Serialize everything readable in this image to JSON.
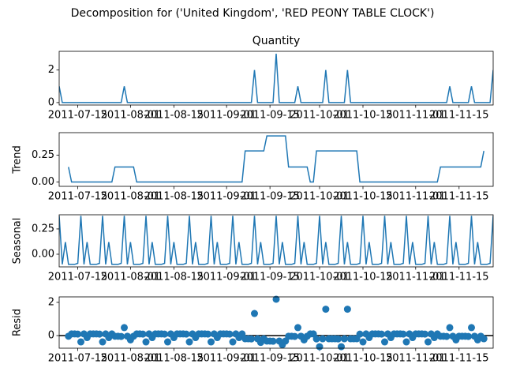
{
  "title": "Decomposition for ('United Kingdom', 'RED PEONY TABLE CLOCK')",
  "x": [
    "2011-07-09",
    "2011-07-10",
    "2011-07-11",
    "2011-07-12",
    "2011-07-13",
    "2011-07-14",
    "2011-07-15",
    "2011-07-16",
    "2011-07-17",
    "2011-07-18",
    "2011-07-19",
    "2011-07-20",
    "2011-07-21",
    "2011-07-22",
    "2011-07-23",
    "2011-07-24",
    "2011-07-25",
    "2011-07-26",
    "2011-07-27",
    "2011-07-28",
    "2011-07-29",
    "2011-07-30",
    "2011-07-31",
    "2011-08-01",
    "2011-08-02",
    "2011-08-03",
    "2011-08-04",
    "2011-08-05",
    "2011-08-06",
    "2011-08-07",
    "2011-08-08",
    "2011-08-09",
    "2011-08-10",
    "2011-08-11",
    "2011-08-12",
    "2011-08-13",
    "2011-08-14",
    "2011-08-15",
    "2011-08-16",
    "2011-08-17",
    "2011-08-18",
    "2011-08-19",
    "2011-08-20",
    "2011-08-21",
    "2011-08-22",
    "2011-08-23",
    "2011-08-24",
    "2011-08-25",
    "2011-08-26",
    "2011-08-27",
    "2011-08-28",
    "2011-08-29",
    "2011-08-30",
    "2011-08-31",
    "2011-09-01",
    "2011-09-02",
    "2011-09-03",
    "2011-09-04",
    "2011-09-05",
    "2011-09-06",
    "2011-09-07",
    "2011-09-08",
    "2011-09-09",
    "2011-09-10",
    "2011-09-11",
    "2011-09-12",
    "2011-09-13",
    "2011-09-14",
    "2011-09-15",
    "2011-09-16",
    "2011-09-17",
    "2011-09-18",
    "2011-09-19",
    "2011-09-20",
    "2011-09-21",
    "2011-09-22",
    "2011-09-23",
    "2011-09-24",
    "2011-09-25",
    "2011-09-26",
    "2011-09-27",
    "2011-09-28",
    "2011-09-29",
    "2011-09-30",
    "2011-10-01",
    "2011-10-02",
    "2011-10-03",
    "2011-10-04",
    "2011-10-05",
    "2011-10-06",
    "2011-10-07",
    "2011-10-08",
    "2011-10-09",
    "2011-10-10",
    "2011-10-11",
    "2011-10-12",
    "2011-10-13",
    "2011-10-14",
    "2011-10-15",
    "2011-10-16",
    "2011-10-17",
    "2011-10-18",
    "2011-10-19",
    "2011-10-20",
    "2011-10-21",
    "2011-10-22",
    "2011-10-23",
    "2011-10-24",
    "2011-10-25",
    "2011-10-26",
    "2011-10-27",
    "2011-10-28",
    "2011-10-29",
    "2011-10-30",
    "2011-10-31",
    "2011-11-01",
    "2011-11-02",
    "2011-11-03",
    "2011-11-04",
    "2011-11-05",
    "2011-11-06",
    "2011-11-07",
    "2011-11-08",
    "2011-11-09",
    "2011-11-10",
    "2011-11-11",
    "2011-11-12",
    "2011-11-13",
    "2011-11-14",
    "2011-11-15",
    "2011-11-16",
    "2011-11-17",
    "2011-11-18",
    "2011-11-19",
    "2011-11-20",
    "2011-11-21",
    "2011-11-22",
    "2011-11-23",
    "2011-11-24",
    "2011-11-25",
    "2011-11-26"
  ],
  "xlim": [
    "2011-07-09",
    "2011-11-26"
  ],
  "xticks": [
    "2011-07-15",
    "2011-08-01",
    "2011-08-15",
    "2011-09-01",
    "2011-09-15",
    "2011-10-01",
    "2011-10-15",
    "2011-11-01",
    "2011-11-15"
  ],
  "chart_data": [
    {
      "type": "line",
      "title": "Quantity",
      "color": "#1f77b4",
      "ylim": [
        -0.15,
        3.15
      ],
      "yticks": [
        0,
        2
      ],
      "values": [
        1,
        0,
        0,
        0,
        0,
        0,
        0,
        0,
        0,
        0,
        0,
        0,
        0,
        0,
        0,
        0,
        0,
        0,
        0,
        0,
        0,
        1,
        0,
        0,
        0,
        0,
        0,
        0,
        0,
        0,
        0,
        0,
        0,
        0,
        0,
        0,
        0,
        0,
        0,
        0,
        0,
        0,
        0,
        0,
        0,
        0,
        0,
        0,
        0,
        0,
        0,
        0,
        0,
        0,
        0,
        0,
        0,
        0,
        0,
        0,
        0,
        0,
        0,
        2,
        0,
        0,
        0,
        0,
        0,
        0,
        3,
        0,
        0,
        0,
        0,
        0,
        0,
        1,
        0,
        0,
        0,
        0,
        0,
        0,
        0,
        0,
        2,
        0,
        0,
        0,
        0,
        0,
        0,
        2,
        0,
        0,
        0,
        0,
        0,
        0,
        0,
        0,
        0,
        0,
        0,
        0,
        0,
        0,
        0,
        0,
        0,
        0,
        0,
        0,
        0,
        0,
        0,
        0,
        0,
        0,
        0,
        0,
        0,
        0,
        0,
        0,
        1,
        0,
        0,
        0,
        0,
        0,
        0,
        1,
        0,
        0,
        0,
        0,
        0,
        0,
        2
      ]
    },
    {
      "type": "line",
      "ylabel": "Trend",
      "color": "#1f77b4",
      "ylim": [
        -0.04,
        0.46
      ],
      "yticks": [
        {
          "value": 0,
          "label": "0.00"
        },
        {
          "value": 0.25,
          "label": "0.25"
        }
      ],
      "values": [
        null,
        null,
        null,
        0.14,
        0,
        0,
        0,
        0,
        0,
        0,
        0,
        0,
        0,
        0,
        0,
        0,
        0,
        0,
        0.14,
        0.14,
        0.14,
        0.14,
        0.14,
        0.14,
        0.14,
        0,
        0,
        0,
        0,
        0,
        0,
        0,
        0,
        0,
        0,
        0,
        0,
        0,
        0,
        0,
        0,
        0,
        0,
        0,
        0,
        0,
        0,
        0,
        0,
        0,
        0,
        0,
        0,
        0,
        0,
        0,
        0,
        0,
        0,
        0,
        0.29,
        0.29,
        0.29,
        0.29,
        0.29,
        0.29,
        0.29,
        0.43,
        0.43,
        0.43,
        0.43,
        0.43,
        0.43,
        0.43,
        0.14,
        0.14,
        0.14,
        0.14,
        0.14,
        0.14,
        0.14,
        0,
        0,
        0.29,
        0.29,
        0.29,
        0.29,
        0.29,
        0.29,
        0.29,
        0.29,
        0.29,
        0.29,
        0.29,
        0.29,
        0.29,
        0.29,
        0,
        0,
        0,
        0,
        0,
        0,
        0,
        0,
        0,
        0,
        0,
        0,
        0,
        0,
        0,
        0,
        0,
        0,
        0,
        0,
        0,
        0,
        0,
        0,
        0,
        0,
        0.14,
        0.14,
        0.14,
        0.14,
        0.14,
        0.14,
        0.14,
        0.14,
        0.14,
        0.14,
        0.14,
        0.14,
        0.14,
        0.14,
        0.29,
        null,
        null,
        null
      ]
    },
    {
      "type": "line",
      "ylabel": "Seasonal",
      "color": "#1f77b4",
      "ylim": [
        -0.125,
        0.39
      ],
      "yticks": [
        {
          "value": 0,
          "label": "0.00"
        },
        {
          "value": 0.25,
          "label": "0.25"
        }
      ],
      "values": [
        0.38,
        -0.1,
        0.12,
        -0.1,
        -0.1,
        -0.1,
        -0.09,
        0.38,
        -0.1,
        0.12,
        -0.1,
        -0.1,
        -0.1,
        -0.09,
        0.38,
        -0.1,
        0.12,
        -0.1,
        -0.1,
        -0.1,
        -0.09,
        0.38,
        -0.1,
        0.12,
        -0.1,
        -0.1,
        -0.1,
        -0.09,
        0.38,
        -0.1,
        0.12,
        -0.1,
        -0.1,
        -0.1,
        -0.09,
        0.38,
        -0.1,
        0.12,
        -0.1,
        -0.1,
        -0.1,
        -0.09,
        0.38,
        -0.1,
        0.12,
        -0.1,
        -0.1,
        -0.1,
        -0.09,
        0.38,
        -0.1,
        0.12,
        -0.1,
        -0.1,
        -0.1,
        -0.09,
        0.38,
        -0.1,
        0.12,
        -0.1,
        -0.1,
        -0.1,
        -0.09,
        0.38,
        -0.1,
        0.12,
        -0.1,
        -0.1,
        -0.1,
        -0.09,
        0.38,
        -0.1,
        0.12,
        -0.1,
        -0.1,
        -0.1,
        -0.09,
        0.38,
        -0.1,
        0.12,
        -0.1,
        -0.1,
        -0.1,
        -0.09,
        0.38,
        -0.1,
        0.12,
        -0.1,
        -0.1,
        -0.1,
        -0.09,
        0.38,
        -0.1,
        0.12,
        -0.1,
        -0.1,
        -0.1,
        -0.09,
        0.38,
        -0.1,
        0.12,
        -0.1,
        -0.1,
        -0.1,
        -0.09,
        0.38,
        -0.1,
        0.12,
        -0.1,
        -0.1,
        -0.1,
        -0.09,
        0.38,
        -0.1,
        0.12,
        -0.1,
        -0.1,
        -0.1,
        -0.09,
        0.38,
        -0.1,
        0.12,
        -0.1,
        -0.1,
        -0.1,
        -0.09,
        0.38,
        -0.1,
        0.12,
        -0.1,
        -0.1,
        -0.1,
        -0.09,
        0.38,
        -0.1,
        0.12,
        -0.1,
        -0.1,
        -0.1,
        -0.09,
        0.38
      ]
    },
    {
      "type": "scatter",
      "ylabel": "Resid",
      "color": "#1f77b4",
      "zero_line": true,
      "ylim": [
        -0.76,
        2.33
      ],
      "yticks": [
        0,
        2
      ],
      "values": [
        null,
        null,
        null,
        -0.04,
        0.1,
        0.1,
        0.09,
        -0.38,
        0.1,
        -0.12,
        0.1,
        0.1,
        0.1,
        0.09,
        -0.38,
        0.1,
        -0.12,
        0.1,
        -0.04,
        -0.04,
        -0.05,
        0.48,
        -0.04,
        -0.26,
        -0.04,
        0.1,
        0.1,
        0.09,
        -0.38,
        0.1,
        -0.12,
        0.1,
        0.1,
        0.1,
        0.09,
        -0.38,
        0.1,
        -0.12,
        0.1,
        0.1,
        0.1,
        0.09,
        -0.38,
        0.1,
        -0.12,
        0.1,
        0.1,
        0.1,
        0.09,
        -0.38,
        0.1,
        -0.12,
        0.1,
        0.1,
        0.1,
        0.09,
        -0.38,
        0.1,
        -0.12,
        0.1,
        -0.19,
        -0.19,
        -0.2,
        1.33,
        -0.19,
        -0.41,
        -0.19,
        -0.33,
        -0.33,
        -0.34,
        2.19,
        -0.33,
        -0.55,
        -0.33,
        -0.04,
        -0.04,
        -0.05,
        0.48,
        -0.04,
        -0.26,
        -0.04,
        0.1,
        0.1,
        -0.2,
        -0.67,
        -0.19,
        1.59,
        -0.19,
        -0.19,
        -0.19,
        -0.2,
        -0.67,
        -0.19,
        1.59,
        -0.19,
        -0.19,
        -0.19,
        0.09,
        -0.38,
        0.1,
        -0.12,
        0.1,
        0.1,
        0.1,
        0.09,
        -0.38,
        0.1,
        -0.12,
        0.1,
        0.1,
        0.1,
        0.09,
        -0.38,
        0.1,
        -0.12,
        0.1,
        0.1,
        0.1,
        0.09,
        -0.38,
        0.1,
        -0.12,
        0.1,
        -0.04,
        -0.04,
        -0.05,
        0.48,
        -0.04,
        -0.26,
        -0.04,
        -0.04,
        -0.04,
        -0.05,
        0.48,
        -0.04,
        -0.26,
        -0.04,
        -0.19,
        null,
        null,
        null
      ]
    }
  ]
}
